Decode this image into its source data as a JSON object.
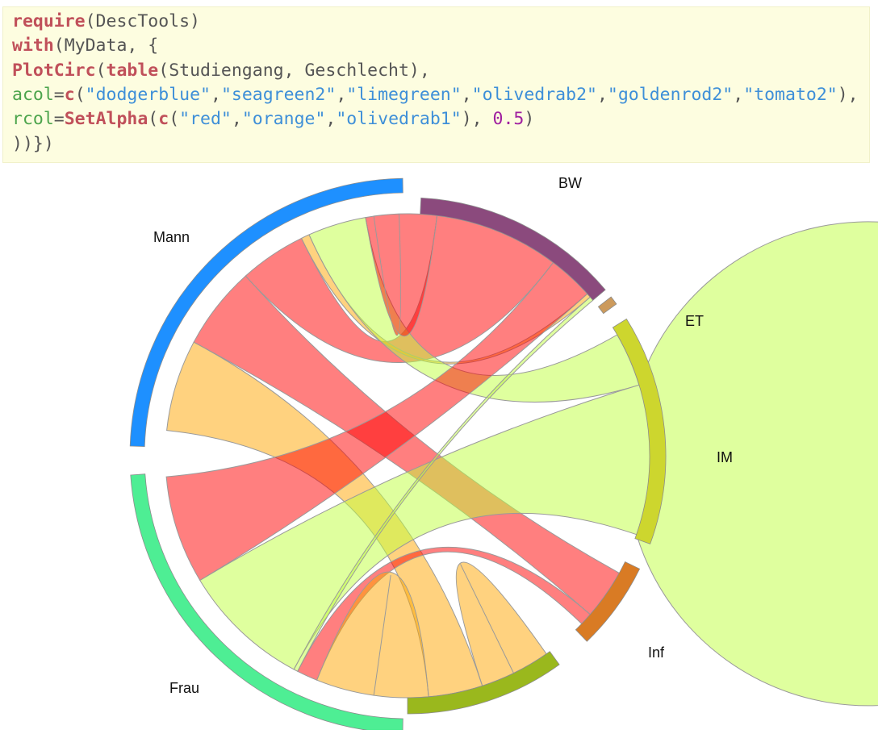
{
  "code": {
    "lines": [
      [
        {
          "t": "require",
          "c": "fn"
        },
        {
          "t": "(DescTools)",
          "c": "plain"
        }
      ],
      [
        {
          "t": "with",
          "c": "fn"
        },
        {
          "t": "(MyData, {",
          "c": "plain"
        }
      ],
      [
        {
          "t": "PlotCirc",
          "c": "fn"
        },
        {
          "t": "(",
          "c": "plain"
        },
        {
          "t": "table",
          "c": "fn"
        },
        {
          "t": "(Studiengang, Geschlecht),",
          "c": "plain"
        }
      ],
      [
        {
          "t": "acol",
          "c": "arg"
        },
        {
          "t": "=",
          "c": "plain"
        },
        {
          "t": "c",
          "c": "fn"
        },
        {
          "t": "(",
          "c": "plain"
        },
        {
          "t": "\"dodgerblue\"",
          "c": "str"
        },
        {
          "t": ",",
          "c": "plain"
        },
        {
          "t": "\"seagreen2\"",
          "c": "str"
        },
        {
          "t": ",",
          "c": "plain"
        },
        {
          "t": "\"limegreen\"",
          "c": "str"
        },
        {
          "t": ",",
          "c": "plain"
        },
        {
          "t": "\"olivedrab2\"",
          "c": "str"
        },
        {
          "t": ",",
          "c": "plain"
        },
        {
          "t": "\"goldenrod2\"",
          "c": "str"
        },
        {
          "t": ",",
          "c": "plain"
        },
        {
          "t": "\"tomato2\"",
          "c": "str"
        },
        {
          "t": "),",
          "c": "plain"
        }
      ],
      [
        {
          "t": "rcol",
          "c": "arg"
        },
        {
          "t": "=",
          "c": "plain"
        },
        {
          "t": "SetAlpha",
          "c": "fn"
        },
        {
          "t": "(",
          "c": "plain"
        },
        {
          "t": "c",
          "c": "fn"
        },
        {
          "t": "(",
          "c": "plain"
        },
        {
          "t": "\"red\"",
          "c": "str"
        },
        {
          "t": ",",
          "c": "plain"
        },
        {
          "t": "\"orange\"",
          "c": "str"
        },
        {
          "t": ",",
          "c": "plain"
        },
        {
          "t": "\"olivedrab1\"",
          "c": "str"
        },
        {
          "t": "), ",
          "c": "plain"
        },
        {
          "t": "0.5",
          "c": "num"
        },
        {
          "t": ")",
          "c": "plain"
        }
      ],
      [
        {
          "t": "))",
          "c": "plain"
        },
        {
          "t": "}",
          "c": "plain"
        },
        {
          "t": ")",
          "c": "plain"
        }
      ]
    ]
  },
  "diagram": {
    "labels": {
      "mann": "Mann",
      "frau": "Frau",
      "bw": "BW",
      "et": "ET",
      "im": "IM",
      "inf": "Inf"
    },
    "colors": {
      "mann": "#1e90ff",
      "frau": "#4eee94",
      "bw": "#8b4a7d",
      "et": "#cc9a5c",
      "im": "#cdd62e",
      "inf": "#d97b24",
      "green_segment": "#9ab81d",
      "ribbon_red": "#ff0000",
      "ribbon_orange": "#ffa500",
      "ribbon_olive": "#c0ff3e"
    }
  }
}
